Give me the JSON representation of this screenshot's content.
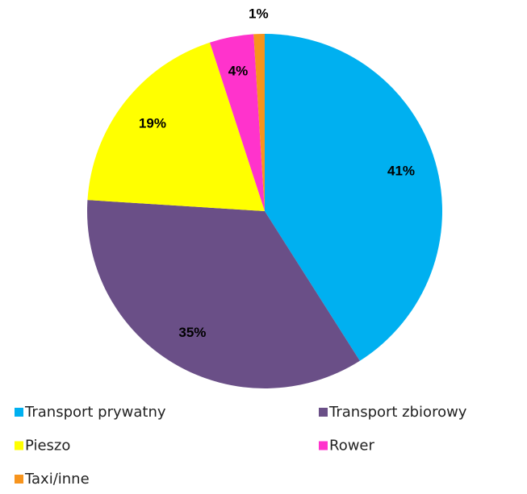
{
  "chart_data": {
    "type": "pie",
    "categories": [
      "Transport prywatny",
      "Transport zbiorowy",
      "Pieszo",
      "Rower",
      "Taxi/inne"
    ],
    "values": [
      41,
      35,
      19,
      4,
      1
    ],
    "value_labels": [
      "41%",
      "35%",
      "19%",
      "4%",
      "1%"
    ],
    "colors": [
      "#00b0f0",
      "#6a4f87",
      "#ffff00",
      "#ff33cc",
      "#f7941d"
    ],
    "legend": "bottom"
  }
}
